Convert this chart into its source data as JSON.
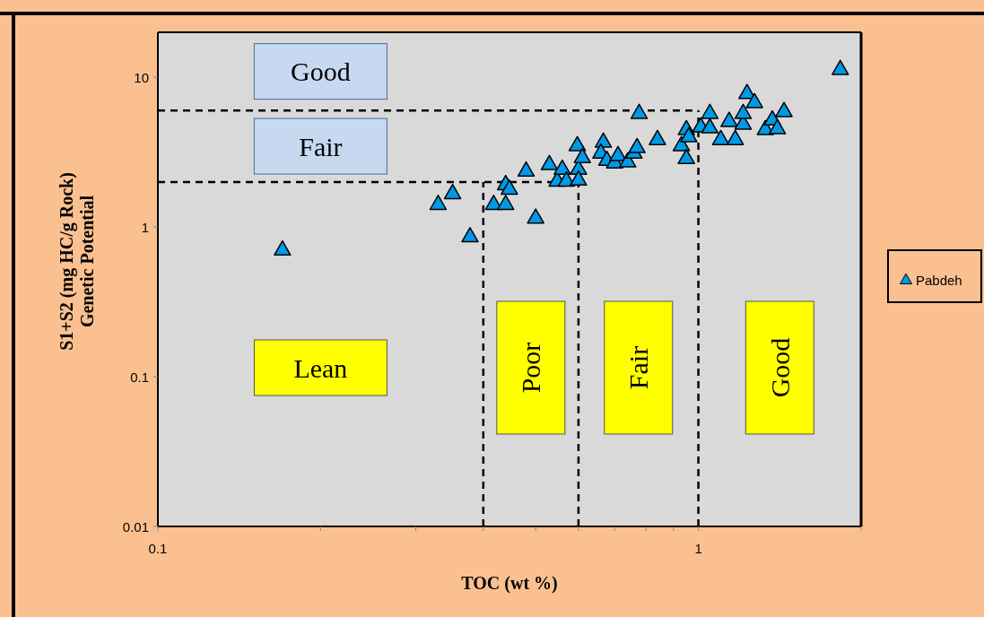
{
  "chart_data": {
    "type": "scatter",
    "xlabel": "TOC (wt %)",
    "ylabel": "S1+S2 (mg HC/g Rock)\nGenetic Potential",
    "log": "xy",
    "xlim": [
      0.1,
      2
    ],
    "ylim": [
      0.01,
      20
    ],
    "xticks": [
      0.1,
      {
        "value": 0.2,
        "label": null
      },
      {
        "value": 0.3,
        "label": null
      },
      {
        "value": 0.4,
        "label": null
      },
      {
        "value": 0.5,
        "label": null
      },
      {
        "value": 0.6,
        "label": null
      },
      {
        "value": 0.7,
        "label": null
      },
      {
        "value": 0.8,
        "label": null
      },
      {
        "value": 0.9,
        "label": null
      },
      1,
      {
        "value": 2,
        "label": null
      }
    ],
    "yticks": [
      0.01,
      0.1,
      1,
      10
    ],
    "grid": false,
    "legend": "right",
    "marker": "triangle",
    "series": [
      {
        "name": "Pabdeh",
        "color": "#0099e6",
        "x": [
          0.17,
          0.33,
          0.351,
          0.378,
          0.418,
          0.44,
          0.44,
          0.447,
          0.48,
          0.5,
          0.53,
          0.548,
          0.56,
          0.57,
          0.597,
          0.6,
          0.6,
          0.61,
          0.667,
          0.66,
          0.677,
          0.7,
          0.71,
          0.74,
          0.76,
          0.777,
          0.77,
          0.84,
          0.93,
          0.95,
          0.95,
          0.96,
          1.01,
          1.05,
          1.05,
          1.1,
          1.14,
          1.17,
          1.21,
          1.23,
          1.21,
          1.27,
          1.33,
          1.37,
          1.4,
          1.44,
          1.83
        ],
        "values": [
          0.71,
          1.43,
          1.69,
          0.87,
          1.43,
          1.43,
          1.94,
          1.81,
          2.39,
          1.16,
          2.64,
          2.05,
          2.46,
          2.05,
          3.53,
          2.46,
          2.08,
          2.94,
          3.73,
          3.15,
          2.82,
          2.71,
          3.03,
          2.75,
          3.15,
          5.8,
          3.43,
          3.88,
          3.53,
          4.52,
          2.9,
          4.05,
          4.72,
          5.8,
          4.65,
          3.88,
          5.13,
          3.88,
          4.92,
          7.87,
          5.8,
          6.85,
          4.52,
          5.25,
          4.58,
          5.97,
          11.4
        ]
      }
    ],
    "ref_lines": [
      {
        "axis": "y",
        "value": 2,
        "line_style": "dashed"
      },
      {
        "axis": "y",
        "value": 6,
        "line_style": "dashed"
      },
      {
        "axis": "x",
        "value": 0.4,
        "line_style": "dashed"
      },
      {
        "axis": "x",
        "value": 0.6,
        "line_style": "dashed"
      },
      {
        "axis": "x",
        "value": 1,
        "line_style": "dashed"
      }
    ],
    "annotations": [
      "Good",
      "Fair",
      "Lean",
      "Poor",
      "Fair",
      "Good"
    ]
  }
}
